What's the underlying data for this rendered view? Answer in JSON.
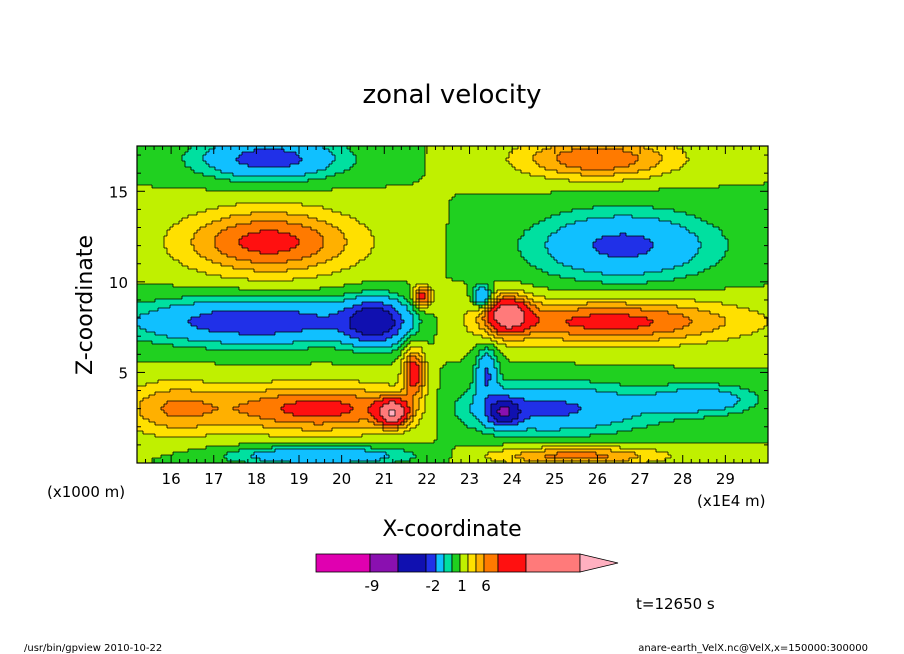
{
  "chart_data": {
    "type": "heatmap",
    "title": "zonal velocity",
    "xlabel": "X-coordinate",
    "ylabel": "Z-coordinate",
    "x_unit_left": "(x1000 m)",
    "x_unit_right": "(x1E4 m)",
    "xlim": [
      15.2,
      30.0
    ],
    "ylim": [
      0.0,
      17.5
    ],
    "xticks": [
      16,
      17,
      18,
      19,
      20,
      21,
      22,
      23,
      24,
      25,
      26,
      27,
      28,
      29
    ],
    "yticks": [
      5,
      10,
      15
    ],
    "time_label": "t=12650 s",
    "colorbar": {
      "tick_labels": [
        "-9",
        "-2",
        "1",
        "6"
      ],
      "colors": [
        "#e000b0",
        "#8a10b0",
        "#1010b0",
        "#2030e8",
        "#10c0ff",
        "#00e0a0",
        "#20d020",
        "#c0f000",
        "#ffe000",
        "#ffb000",
        "#ff7a00",
        "#ff1010",
        "#ff7a7a",
        "#ffb0c0"
      ]
    },
    "levels": [
      -12,
      -9,
      -6,
      -4,
      -2,
      -1,
      0,
      1,
      2,
      3,
      4,
      6,
      9,
      12,
      15
    ],
    "features": [
      {
        "x": 18.3,
        "z": 16.8,
        "u": -5.0,
        "sx": 1.6,
        "sz": 1.1
      },
      {
        "x": 26.0,
        "z": 16.8,
        "u": 4.0,
        "sx": 1.8,
        "sz": 1.1
      },
      {
        "x": 18.3,
        "z": 12.2,
        "u": 4.5,
        "sx": 2.0,
        "sz": 1.8
      },
      {
        "x": 26.6,
        "z": 12.0,
        "u": -4.5,
        "sx": 2.0,
        "sz": 1.8
      },
      {
        "x": 18.0,
        "z": 7.8,
        "u": -5.5,
        "sx": 2.8,
        "sz": 1.2
      },
      {
        "x": 26.3,
        "z": 7.8,
        "u": 4.5,
        "sx": 3.0,
        "sz": 1.2
      },
      {
        "x": 20.8,
        "z": 7.8,
        "u": -7.0,
        "sx": 0.7,
        "sz": 1.2
      },
      {
        "x": 23.9,
        "z": 8.2,
        "u": 6.5,
        "sx": 0.5,
        "sz": 1.0
      },
      {
        "x": 21.9,
        "z": 9.2,
        "u": 5.0,
        "sx": 0.2,
        "sz": 0.6
      },
      {
        "x": 23.3,
        "z": 9.2,
        "u": -5.0,
        "sx": 0.2,
        "sz": 0.6
      },
      {
        "x": 19.5,
        "z": 3.0,
        "u": 4.5,
        "sx": 2.6,
        "sz": 1.3
      },
      {
        "x": 24.8,
        "z": 3.0,
        "u": -4.5,
        "sx": 2.4,
        "sz": 1.3
      },
      {
        "x": 21.2,
        "z": 2.8,
        "u": 7.0,
        "sx": 0.35,
        "sz": 0.7
      },
      {
        "x": 23.8,
        "z": 2.8,
        "u": -6.5,
        "sx": 0.35,
        "sz": 0.7
      },
      {
        "x": 28.5,
        "z": 3.5,
        "u": -3.0,
        "sx": 1.2,
        "sz": 0.8
      },
      {
        "x": 16.0,
        "z": 3.0,
        "u": 2.5,
        "sx": 1.2,
        "sz": 1.5
      },
      {
        "x": 19.5,
        "z": 0.4,
        "u": -4.0,
        "sx": 2.0,
        "sz": 0.5
      },
      {
        "x": 25.5,
        "z": 0.4,
        "u": 3.5,
        "sx": 2.0,
        "sz": 0.5
      },
      {
        "x": 21.7,
        "z": 5.0,
        "u": 5.0,
        "sx": 0.25,
        "sz": 1.3
      },
      {
        "x": 23.4,
        "z": 5.0,
        "u": -4.0,
        "sx": 0.25,
        "sz": 1.3
      }
    ]
  },
  "footer": {
    "left": "/usr/bin/gpview  2010-10-22",
    "right": "anare-earth_VelX.nc@VelX,x=150000:300000"
  }
}
